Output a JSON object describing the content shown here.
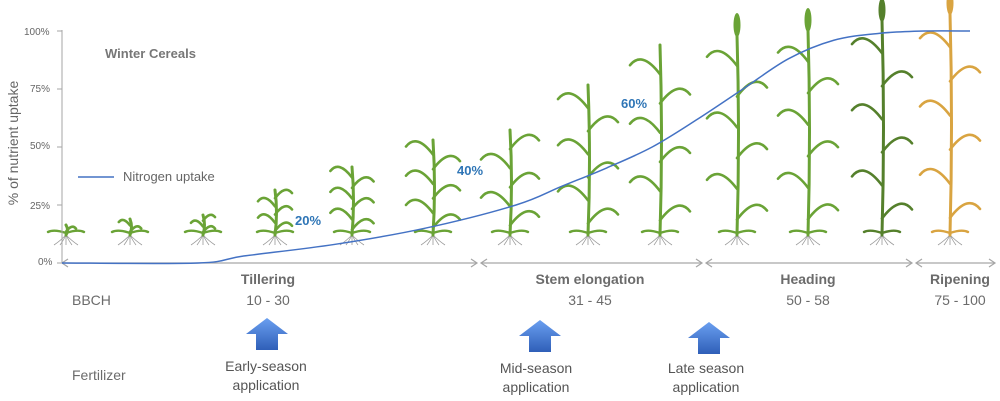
{
  "chart_data": {
    "type": "line",
    "title": "Winter Cereals",
    "ylabel": "% of nutrient uptake",
    "ylim": [
      0,
      100
    ],
    "yticks": [
      "0%",
      "25%",
      "50%",
      "75%",
      "100%"
    ],
    "series": [
      {
        "name": "Nitrogen uptake",
        "color": "#4472c4",
        "x_stage_position": [
          0,
          0.15,
          0.2,
          0.3,
          0.4,
          0.5,
          0.55,
          0.6,
          0.65,
          0.7,
          0.75,
          0.8,
          0.85,
          0.9,
          0.95,
          1.0
        ],
        "values": [
          0,
          0,
          3,
          8,
          15,
          25,
          33,
          41,
          50,
          62,
          75,
          88,
          96,
          99,
          100,
          100
        ]
      }
    ],
    "annotations": [
      "20%",
      "40%",
      "60%"
    ],
    "grid": false
  },
  "stages": [
    {
      "name": "Tillering",
      "range": "10 - 30"
    },
    {
      "name": "Stem elongation",
      "range": "31 - 45"
    },
    {
      "name": "Heading",
      "range": "50 - 58"
    },
    {
      "name": "Ripening",
      "range": "75 - 100"
    }
  ],
  "row_labels": {
    "bbch": "BBCH",
    "fertilizer": "Fertilizer"
  },
  "applications": [
    {
      "line1": "Early-season",
      "line2": "application"
    },
    {
      "line1": "Mid-season",
      "line2": "application"
    },
    {
      "line1": "Late season",
      "line2": "application"
    }
  ],
  "colors": {
    "curve": "#4472c4",
    "annotation": "#2e75b6",
    "arrow": "#4a7fd6",
    "plant_green": "#6aa336",
    "plant_dark": "#55802c",
    "plant_ripe": "#d9a441",
    "axis": "#a6a6a6"
  }
}
